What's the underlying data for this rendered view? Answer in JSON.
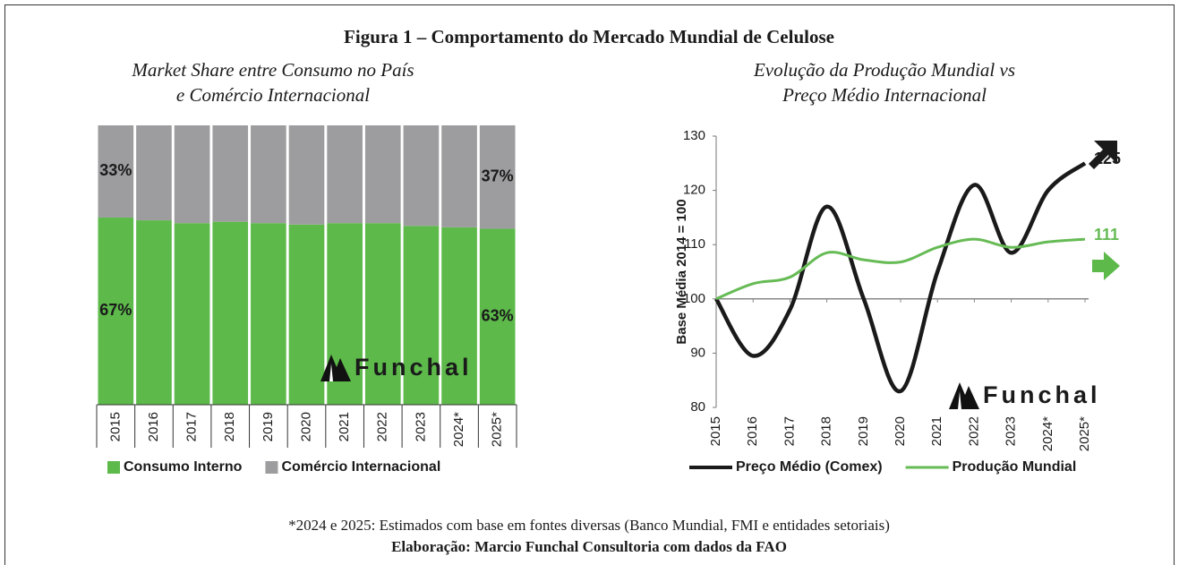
{
  "title": "Figura 1 – Comportamento do Mercado Mundial de Celulose",
  "footnote": "*2024 e 2025: Estimados com base em fontes diversas (Banco Mundial, FMI e entidades setoriais)",
  "source": "Elaboração: Marcio Funchal Consultoria com dados da FAO",
  "chart_data": [
    {
      "type": "bar",
      "stacked": true,
      "title": [
        "Market Share entre Consumo no País",
        "e Comércio Internacional"
      ],
      "categories": [
        "2015",
        "2016",
        "2017",
        "2018",
        "2019",
        "2020",
        "2021",
        "2022",
        "2023",
        "2024*",
        "2025*"
      ],
      "series": [
        {
          "name": "Consumo Interno",
          "color": "#5cb94a",
          "values": [
            67,
            66,
            65,
            65.5,
            65,
            64.5,
            65,
            65,
            64,
            63.5,
            63
          ],
          "value_labels": [
            "67%",
            null,
            null,
            null,
            null,
            null,
            null,
            null,
            null,
            null,
            "63%"
          ]
        },
        {
          "name": "Comércio Internacional",
          "color": "#9d9d9f",
          "values": [
            33,
            34,
            35,
            34.5,
            35,
            35.5,
            35,
            35,
            36,
            36.5,
            37
          ],
          "value_labels": [
            "33%",
            null,
            null,
            null,
            null,
            null,
            null,
            null,
            null,
            null,
            "37%"
          ]
        }
      ],
      "ylim": [
        0,
        100
      ],
      "legend": "bottom",
      "watermark": "Funchal"
    },
    {
      "type": "line",
      "title": [
        "Evolução da Produção Mundial vs",
        "Preço Médio Internacional"
      ],
      "ylabel": "Base Média 2014 = 100",
      "categories": [
        "2015",
        "2016",
        "2017",
        "2018",
        "2019",
        "2020",
        "2021",
        "2022",
        "2023",
        "2024*",
        "2025*"
      ],
      "series": [
        {
          "name": "Preço Médio (Comex)",
          "color": "#1a1a1a",
          "values": [
            100,
            89.5,
            98,
            117,
            100,
            83,
            105,
            121,
            108.5,
            120,
            125
          ],
          "value_labels": [
            null,
            null,
            null,
            null,
            null,
            null,
            null,
            null,
            null,
            null,
            "125"
          ]
        },
        {
          "name": "Produção Mundial",
          "color": "#66bb55",
          "values": [
            100,
            102.8,
            104,
            108.5,
            107.2,
            106.8,
            109.5,
            111,
            109.5,
            110.5,
            111
          ],
          "value_labels": [
            null,
            null,
            null,
            null,
            null,
            null,
            null,
            null,
            null,
            null,
            "111"
          ]
        }
      ],
      "ylim": [
        80,
        130
      ],
      "yticks": [
        80,
        90,
        100,
        110,
        120,
        130
      ],
      "x_axis_at": 100,
      "legend": "bottom",
      "watermark": "Funchal"
    }
  ]
}
